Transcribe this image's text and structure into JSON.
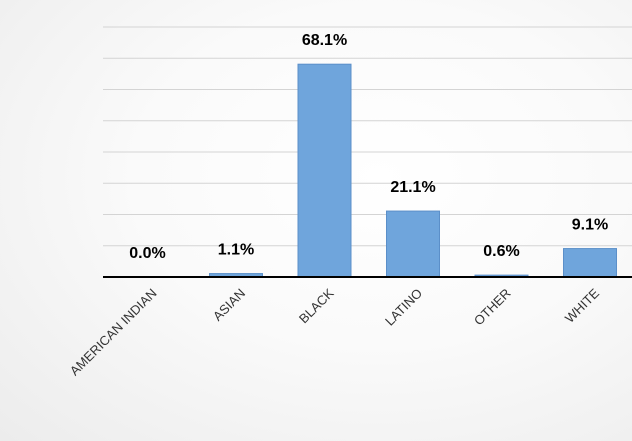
{
  "chart_data": {
    "type": "bar",
    "categories": [
      "AMERICAN INDIAN",
      "ASIAN",
      "BLACK",
      "LATINO",
      "OTHER",
      "WHITE"
    ],
    "values": [
      0.0,
      1.1,
      68.1,
      21.1,
      0.6,
      9.1
    ],
    "data_labels": [
      "0.0%",
      "1.1%",
      "68.1%",
      "21.1%",
      "0.6%",
      "9.1%"
    ],
    "title": "",
    "xlabel": "",
    "ylabel": "",
    "ylim": [
      0,
      80
    ],
    "grid": true,
    "legend": "none",
    "bar_color": "#6fa5dc"
  }
}
